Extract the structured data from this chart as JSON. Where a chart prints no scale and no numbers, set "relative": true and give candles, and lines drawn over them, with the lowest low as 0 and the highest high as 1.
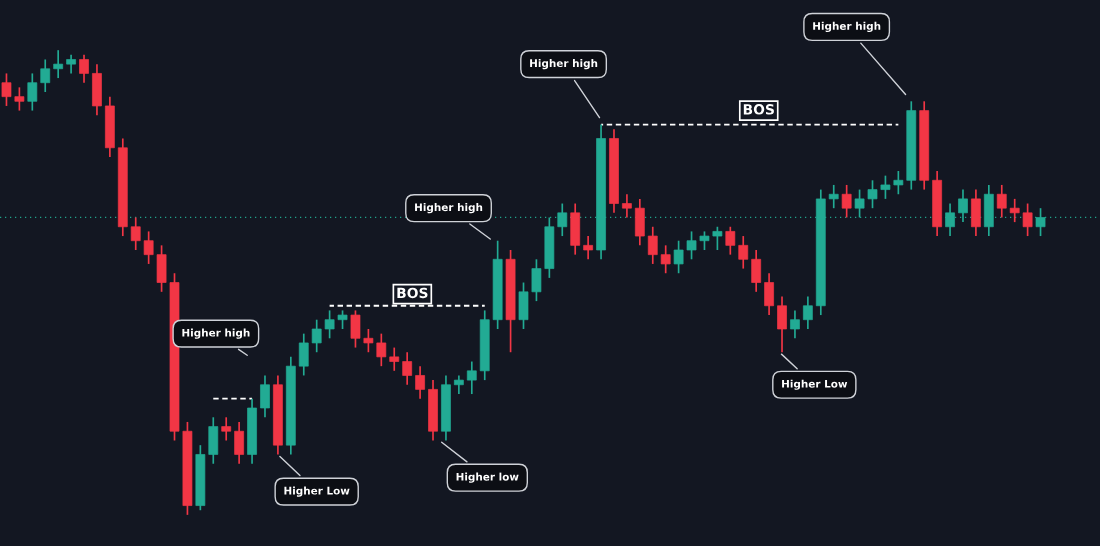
{
  "chart_data": {
    "type": "candlestick",
    "relative": true,
    "categories": [
      null,
      null,
      null,
      null,
      null,
      null,
      null,
      null,
      null,
      null,
      null,
      null,
      null,
      null,
      null,
      null,
      null,
      null,
      null,
      null,
      null,
      null,
      null,
      null,
      null,
      null,
      null,
      null,
      null,
      null,
      null,
      null,
      null,
      null,
      null,
      null,
      null,
      null,
      null,
      null,
      null,
      null,
      null,
      null,
      null,
      null,
      null,
      null,
      null,
      null,
      null,
      null,
      null,
      null,
      null,
      null,
      null,
      null,
      null,
      null,
      null,
      null,
      null,
      null,
      null,
      null,
      null,
      null,
      null,
      null,
      null,
      null,
      null,
      null,
      null,
      null,
      null,
      null,
      null,
      null,
      null
    ],
    "ohlc": [
      [
        0.93,
        0.95,
        0.88,
        0.9
      ],
      [
        0.9,
        0.92,
        0.87,
        0.89
      ],
      [
        0.89,
        0.95,
        0.87,
        0.93
      ],
      [
        0.93,
        0.98,
        0.91,
        0.96
      ],
      [
        0.96,
        1.0,
        0.94,
        0.97
      ],
      [
        0.97,
        0.99,
        0.95,
        0.98
      ],
      [
        0.98,
        0.99,
        0.93,
        0.95
      ],
      [
        0.95,
        0.97,
        0.86,
        0.88
      ],
      [
        0.88,
        0.9,
        0.77,
        0.79
      ],
      [
        0.79,
        0.81,
        0.6,
        0.62
      ],
      [
        0.62,
        0.64,
        0.57,
        0.59
      ],
      [
        0.59,
        0.61,
        0.54,
        0.56
      ],
      [
        0.56,
        0.58,
        0.48,
        0.5
      ],
      [
        0.5,
        0.52,
        0.16,
        0.18
      ],
      [
        0.18,
        0.2,
        0.0,
        0.02
      ],
      [
        0.02,
        0.15,
        0.01,
        0.13
      ],
      [
        0.13,
        0.21,
        0.11,
        0.19
      ],
      [
        0.19,
        0.21,
        0.16,
        0.18
      ],
      [
        0.18,
        0.2,
        0.11,
        0.13
      ],
      [
        0.13,
        0.25,
        0.11,
        0.23
      ],
      [
        0.23,
        0.3,
        0.21,
        0.28
      ],
      [
        0.28,
        0.3,
        0.13,
        0.15
      ],
      [
        0.15,
        0.34,
        0.13,
        0.32
      ],
      [
        0.32,
        0.39,
        0.3,
        0.37
      ],
      [
        0.37,
        0.42,
        0.35,
        0.4
      ],
      [
        0.4,
        0.44,
        0.38,
        0.42
      ],
      [
        0.42,
        0.44,
        0.4,
        0.43
      ],
      [
        0.43,
        0.44,
        0.36,
        0.38
      ],
      [
        0.38,
        0.4,
        0.35,
        0.37
      ],
      [
        0.37,
        0.39,
        0.32,
        0.34
      ],
      [
        0.34,
        0.36,
        0.31,
        0.33
      ],
      [
        0.33,
        0.35,
        0.28,
        0.3
      ],
      [
        0.3,
        0.32,
        0.25,
        0.27
      ],
      [
        0.27,
        0.29,
        0.16,
        0.18
      ],
      [
        0.18,
        0.3,
        0.16,
        0.28
      ],
      [
        0.28,
        0.3,
        0.26,
        0.29
      ],
      [
        0.29,
        0.33,
        0.26,
        0.31
      ],
      [
        0.31,
        0.44,
        0.29,
        0.42
      ],
      [
        0.42,
        0.59,
        0.4,
        0.55
      ],
      [
        0.55,
        0.57,
        0.35,
        0.42
      ],
      [
        0.42,
        0.5,
        0.4,
        0.48
      ],
      [
        0.48,
        0.55,
        0.46,
        0.53
      ],
      [
        0.53,
        0.64,
        0.51,
        0.62
      ],
      [
        0.62,
        0.67,
        0.6,
        0.65
      ],
      [
        0.65,
        0.67,
        0.56,
        0.58
      ],
      [
        0.58,
        0.6,
        0.55,
        0.57
      ],
      [
        0.57,
        0.84,
        0.55,
        0.81
      ],
      [
        0.81,
        0.83,
        0.65,
        0.67
      ],
      [
        0.67,
        0.69,
        0.64,
        0.66
      ],
      [
        0.66,
        0.68,
        0.58,
        0.6
      ],
      [
        0.6,
        0.62,
        0.54,
        0.56
      ],
      [
        0.56,
        0.58,
        0.52,
        0.54
      ],
      [
        0.54,
        0.59,
        0.52,
        0.57
      ],
      [
        0.57,
        0.61,
        0.55,
        0.59
      ],
      [
        0.59,
        0.61,
        0.57,
        0.6
      ],
      [
        0.6,
        0.62,
        0.57,
        0.61
      ],
      [
        0.61,
        0.62,
        0.56,
        0.58
      ],
      [
        0.58,
        0.6,
        0.53,
        0.55
      ],
      [
        0.55,
        0.57,
        0.48,
        0.5
      ],
      [
        0.5,
        0.52,
        0.43,
        0.45
      ],
      [
        0.45,
        0.47,
        0.35,
        0.4
      ],
      [
        0.4,
        0.44,
        0.38,
        0.42
      ],
      [
        0.42,
        0.47,
        0.4,
        0.45
      ],
      [
        0.45,
        0.7,
        0.43,
        0.68
      ],
      [
        0.68,
        0.71,
        0.66,
        0.69
      ],
      [
        0.69,
        0.71,
        0.64,
        0.66
      ],
      [
        0.66,
        0.7,
        0.64,
        0.68
      ],
      [
        0.68,
        0.72,
        0.66,
        0.7
      ],
      [
        0.7,
        0.73,
        0.68,
        0.71
      ],
      [
        0.71,
        0.74,
        0.69,
        0.72
      ],
      [
        0.72,
        0.89,
        0.7,
        0.87
      ],
      [
        0.87,
        0.89,
        0.7,
        0.72
      ],
      [
        0.72,
        0.74,
        0.6,
        0.62
      ],
      [
        0.62,
        0.67,
        0.6,
        0.65
      ],
      [
        0.65,
        0.7,
        0.63,
        0.68
      ],
      [
        0.68,
        0.7,
        0.6,
        0.62
      ],
      [
        0.62,
        0.71,
        0.6,
        0.69
      ],
      [
        0.69,
        0.71,
        0.64,
        0.66
      ],
      [
        0.66,
        0.68,
        0.63,
        0.65
      ],
      [
        0.65,
        0.67,
        0.6,
        0.62
      ],
      [
        0.62,
        0.66,
        0.6,
        0.64
      ]
    ],
    "colors": [
      "#f23645",
      "#f23645",
      "#22ab94",
      "#22ab94",
      "#22ab94",
      "#22ab94",
      "#f23645",
      "#f23645",
      "#f23645",
      "#f23645",
      "#f23645",
      "#f23645",
      "#f23645",
      "#f23645",
      "#f23645",
      "#22ab94",
      "#22ab94",
      "#f23645",
      "#f23645",
      "#22ab94",
      "#22ab94",
      "#f23645",
      "#22ab94",
      "#22ab94",
      "#22ab94",
      "#22ab94",
      "#22ab94",
      "#f23645",
      "#f23645",
      "#f23645",
      "#f23645",
      "#f23645",
      "#f23645",
      "#f23645",
      "#22ab94",
      "#22ab94",
      "#22ab94",
      "#22ab94",
      "#22ab94",
      "#f23645",
      "#22ab94",
      "#22ab94",
      "#22ab94",
      "#22ab94",
      "#f23645",
      "#f23645",
      "#22ab94",
      "#f23645",
      "#f23645",
      "#f23645",
      "#f23645",
      "#f23645",
      "#22ab94",
      "#22ab94",
      "#22ab94",
      "#22ab94",
      "#f23645",
      "#f23645",
      "#f23645",
      "#f23645",
      "#f23645",
      "#22ab94",
      "#22ab94",
      "#22ab94",
      "#22ab94",
      "#f23645",
      "#22ab94",
      "#22ab94",
      "#22ab94",
      "#22ab94",
      "#22ab94",
      "#f23645",
      "#f23645",
      "#22ab94",
      "#22ab94",
      "#f23645",
      "#22ab94",
      "#f23645",
      "#f23645",
      "#f23645",
      "#22ab94"
    ],
    "series": [
      {
        "type": "line",
        "color": "#ffffff",
        "line_style": "dashed",
        "values": [
          null,
          null,
          null,
          null,
          null,
          null,
          null,
          null,
          null,
          null,
          null,
          null,
          null,
          null,
          null,
          null,
          0.25,
          0.25,
          0.25,
          0.25,
          null,
          null,
          null,
          null,
          null,
          null,
          null,
          null,
          null,
          null,
          null,
          null,
          null,
          null,
          null,
          null,
          null,
          null,
          null,
          null,
          null,
          null,
          null,
          null,
          null,
          null,
          null,
          null,
          null,
          null,
          null,
          null,
          null,
          null,
          null,
          null,
          null,
          null,
          null,
          null,
          null,
          null,
          null,
          null,
          null,
          null,
          null,
          null,
          null,
          null,
          null,
          null,
          null,
          null,
          null,
          null,
          null,
          null,
          null,
          null,
          null
        ]
      },
      {
        "type": "line",
        "color": "#ffffff",
        "line_style": "dashed",
        "values": [
          null,
          null,
          null,
          null,
          null,
          null,
          null,
          null,
          null,
          null,
          null,
          null,
          null,
          null,
          null,
          null,
          null,
          null,
          null,
          null,
          null,
          null,
          null,
          null,
          null,
          0.45,
          0.45,
          0.45,
          0.45,
          0.45,
          0.45,
          0.45,
          0.45,
          0.45,
          0.45,
          0.45,
          0.45,
          0.45,
          null,
          null,
          null,
          null,
          null,
          null,
          null,
          null,
          null,
          null,
          null,
          null,
          null,
          null,
          null,
          null,
          null,
          null,
          null,
          null,
          null,
          null,
          null,
          null,
          null,
          null,
          null,
          null,
          null,
          null,
          null,
          null,
          null,
          null,
          null,
          null,
          null,
          null,
          null,
          null,
          null,
          null,
          null
        ]
      },
      {
        "type": "line",
        "color": "#ffffff",
        "line_style": "dashed",
        "values": [
          null,
          null,
          null,
          null,
          null,
          null,
          null,
          null,
          null,
          null,
          null,
          null,
          null,
          null,
          null,
          null,
          null,
          null,
          null,
          null,
          null,
          null,
          null,
          null,
          null,
          null,
          null,
          null,
          null,
          null,
          null,
          null,
          null,
          null,
          null,
          null,
          null,
          null,
          null,
          null,
          null,
          null,
          null,
          null,
          null,
          null,
          0.84,
          0.84,
          0.84,
          0.84,
          0.84,
          0.84,
          0.84,
          0.84,
          0.84,
          0.84,
          0.84,
          0.84,
          0.84,
          0.84,
          0.84,
          0.84,
          0.84,
          0.84,
          0.84,
          0.84,
          0.84,
          0.84,
          0.84,
          0.84,
          null,
          null,
          null,
          null,
          null,
          null,
          null,
          null,
          null,
          null,
          null
        ]
      }
    ],
    "ref_lines": [
      {
        "axis": "y",
        "value": 0.64,
        "color": "#1fa38a",
        "line_style": "dotted"
      }
    ],
    "annotations": [
      "Higher high",
      "Higher Low",
      "BOS",
      "Higher high",
      "Higher low",
      "Higher high",
      "BOS",
      "Higher high",
      "Higher Low"
    ]
  }
}
